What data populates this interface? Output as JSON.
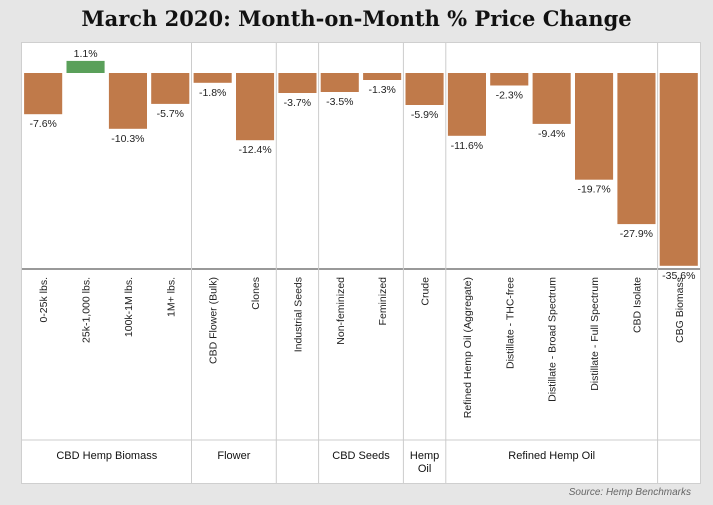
{
  "title": "March 2020: Month-on-Month % Price Change",
  "source": "Source: Hemp Benchmarks",
  "colors": {
    "negative": "#c07a4a",
    "positive": "#5aa05a",
    "axis": "#333333",
    "divider": "#cccccc"
  },
  "chart_data": {
    "type": "bar",
    "title": "March 2020: Month-on-Month % Price Change",
    "xlabel": "",
    "ylabel": "",
    "categories": [
      "0-25k lbs.",
      "25k-1,000 lbs.",
      "100k-1M lbs.",
      "1M+ lbs.",
      "CBD Flower (Bulk)",
      "Clones",
      "Industrial Seeds",
      "Non-feminized",
      "Feminized",
      "Crude",
      "Refined Hemp Oil (Aggregate)",
      "Distillate - THC-free",
      "Distillate - Broad Spectrum",
      "Distillate - Full Spectrum",
      "CBD Isolate",
      "CBG Biomass"
    ],
    "values": [
      -7.6,
      1.1,
      -10.3,
      -5.7,
      -1.8,
      -12.4,
      -3.7,
      -3.5,
      -1.3,
      -5.9,
      -11.6,
      -2.3,
      -9.4,
      -19.7,
      -27.9,
      -35.6
    ],
    "value_labels": [
      "-7.6%",
      "1.1%",
      "-10.3%",
      "-5.7%",
      "-1.8%",
      "-12.4%",
      "-3.7%",
      "-3.5%",
      "-1.3%",
      "-5.9%",
      "-11.6%",
      "-2.3%",
      "-9.4%",
      "-19.7%",
      "-27.9%",
      "-35.6%"
    ],
    "groups": [
      {
        "label": "CBD Hemp Biomass",
        "start": 0,
        "end": 3
      },
      {
        "label": "Flower",
        "start": 4,
        "end": 5
      },
      {
        "label": "",
        "start": 6,
        "end": 6
      },
      {
        "label": "CBD Seeds",
        "start": 7,
        "end": 8
      },
      {
        "label": "Hemp Oil",
        "start": 9,
        "end": 9
      },
      {
        "label": "Refined Hemp Oil",
        "start": 10,
        "end": 14
      },
      {
        "label": "",
        "start": 15,
        "end": 15
      }
    ],
    "ylim": [
      -36,
      1.5
    ],
    "grid": false
  }
}
